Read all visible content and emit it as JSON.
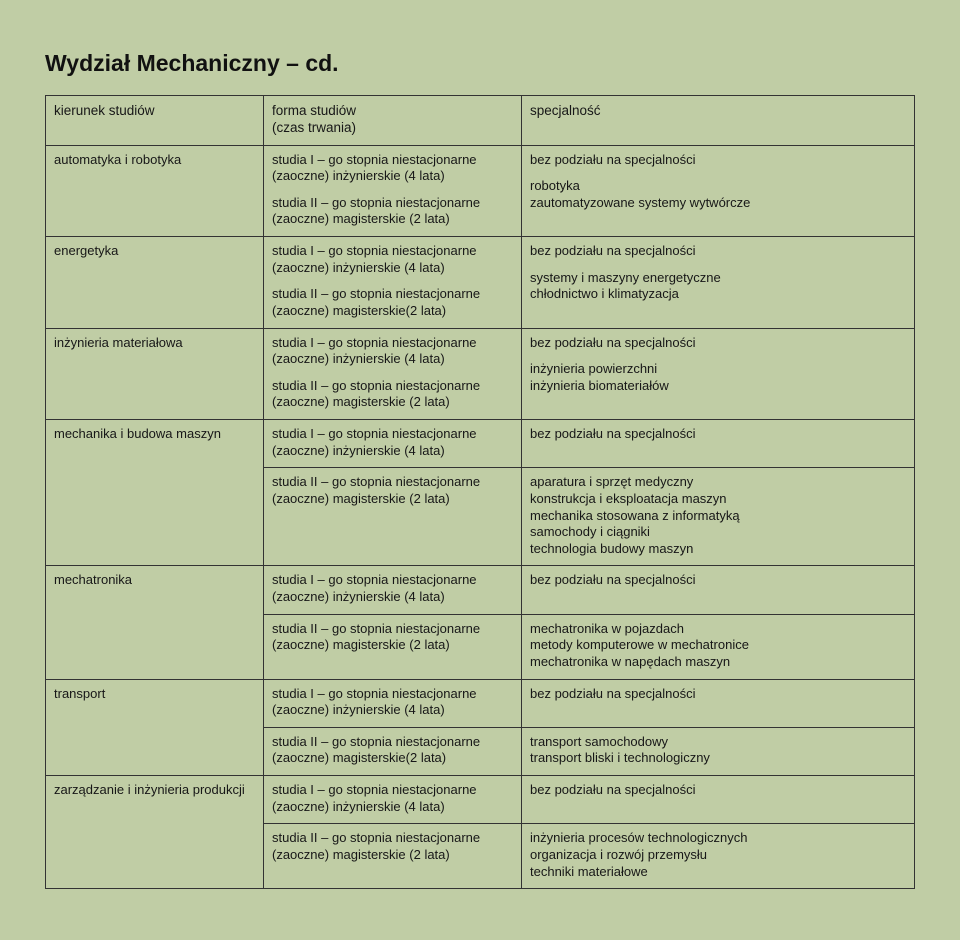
{
  "title": "Wydział Mechaniczny – cd.",
  "headers": {
    "col1": "kierunek studiów",
    "col2a": "forma studiów",
    "col2b": "(czas trwania)",
    "col3": "specjalność"
  },
  "form1": "studia I – go stopnia niestacjonarne\n(zaoczne) inżynierskie (4 lata)",
  "form2a": "studia II – go stopnia niestacjonarne\n(zaoczne) magisterskie (2 lata)",
  "form2b": "studia II – go stopnia niestacjonarne\n(zaoczne) magisterskie(2 lata)",
  "bez": "bez podziału na specjalności",
  "dirs": [
    {
      "name": "automatyka i robotyka",
      "f2key": "form2a",
      "spec2": "robotyka\nzautomatyzowane systemy wytwórcze"
    },
    {
      "name": "energetyka",
      "f2key": "form2b",
      "spec2": "systemy i maszyny energetyczne\nchłodnictwo i klimatyzacja"
    },
    {
      "name": "inżynieria materiałowa",
      "f2key": "form2a",
      "spec2": "inżynieria powierzchni\ninżynieria biomateriałów"
    },
    {
      "name": "mechanika i budowa maszyn",
      "f2key": "form2a",
      "spec2": "aparatura i sprzęt medyczny\nkonstrukcja i eksploatacja maszyn\nmechanika stosowana z informatyką\nsamochody i ciągniki\ntechnologia budowy maszyn",
      "splitForm": true
    },
    {
      "name": "mechatronika",
      "f2key": "form2a",
      "spec2": "mechatronika w pojazdach\nmetody komputerowe w mechatronice\nmechatronika w napędach maszyn",
      "splitForm": true
    },
    {
      "name": "transport",
      "f2key": "form2b",
      "spec2": "transport samochodowy\ntransport bliski i technologiczny",
      "splitForm": true
    },
    {
      "name": "zarządzanie i inżynieria produkcji",
      "f2key": "form2a",
      "spec2": "inżynieria procesów technologicznych\norganizacja i rozwój przemysłu\ntechniki materiałowe",
      "splitForm": true
    }
  ]
}
